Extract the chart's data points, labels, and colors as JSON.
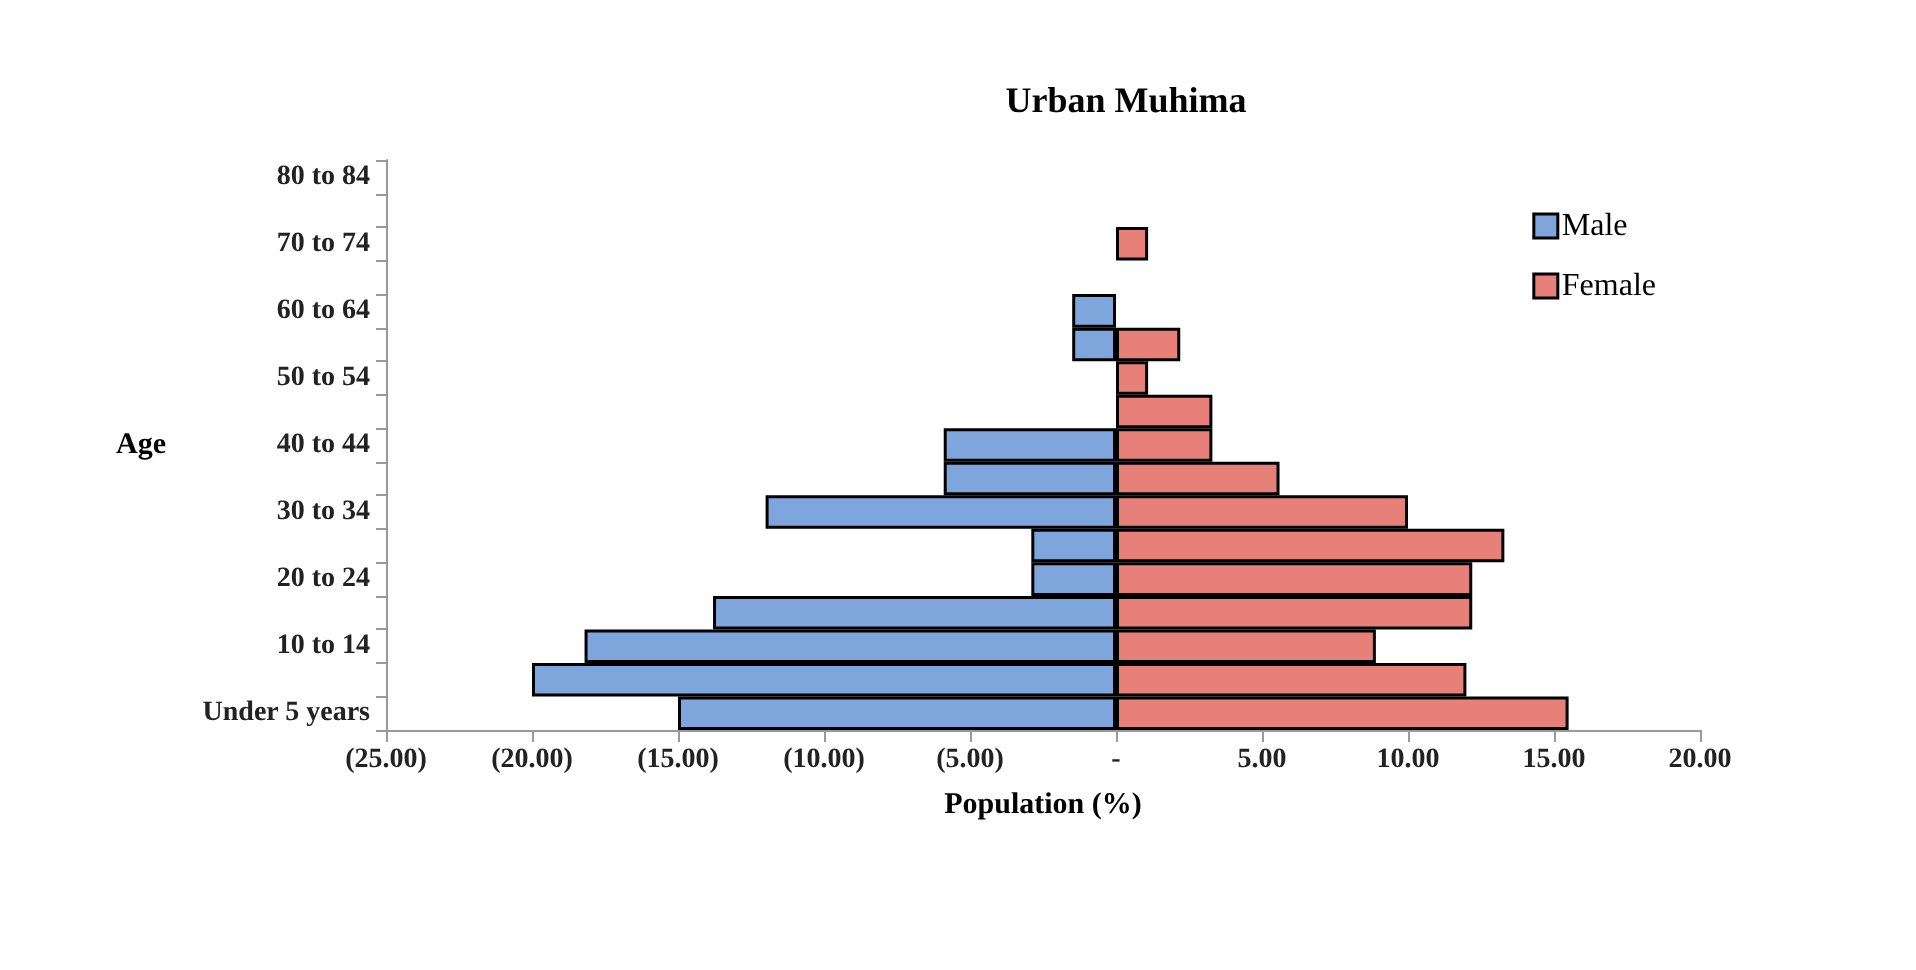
{
  "chart_data": {
    "type": "bar",
    "orientation": "horizontal",
    "stacked": true,
    "title": "Urban Muhima",
    "xlabel": "Population (%)",
    "ylabel": "Age",
    "categories": [
      "80 to 84",
      null,
      "70 to 74",
      null,
      "60 to 64",
      null,
      "50 to 54",
      null,
      "40 to 44",
      null,
      "30 to 34",
      null,
      "20 to 24",
      null,
      "10 to 14",
      null,
      "Under 5 years"
    ],
    "series": [
      {
        "name": "Male",
        "color": "#7ea6dc",
        "values": [
          null,
          null,
          null,
          null,
          -1.5,
          -1.5,
          null,
          null,
          -5.9,
          -5.9,
          -12.0,
          -2.9,
          -2.9,
          -13.8,
          -18.2,
          -20.0,
          -15.0
        ]
      },
      {
        "name": "Female",
        "color": "#e8807a",
        "values": [
          null,
          null,
          1.1,
          null,
          null,
          2.2,
          1.1,
          3.3,
          3.3,
          5.6,
          10.0,
          13.3,
          12.2,
          12.2,
          8.9,
          12.0,
          15.5
        ]
      }
    ],
    "xlim": [
      -25,
      20
    ],
    "xticks": [
      {
        "value": -25,
        "label": "(25.00)"
      },
      {
        "value": -20,
        "label": "(20.00)"
      },
      {
        "value": -15,
        "label": "(15.00)"
      },
      {
        "value": -10,
        "label": "(10.00)"
      },
      {
        "value": -5,
        "label": "(5.00)"
      },
      {
        "value": 0,
        "label": "-"
      },
      {
        "value": 5,
        "label": "5.00"
      },
      {
        "value": 10,
        "label": "10.00"
      },
      {
        "value": 15,
        "label": "15.00"
      },
      {
        "value": 20,
        "label": "20.00"
      }
    ],
    "grid": false,
    "legend": "top right"
  }
}
